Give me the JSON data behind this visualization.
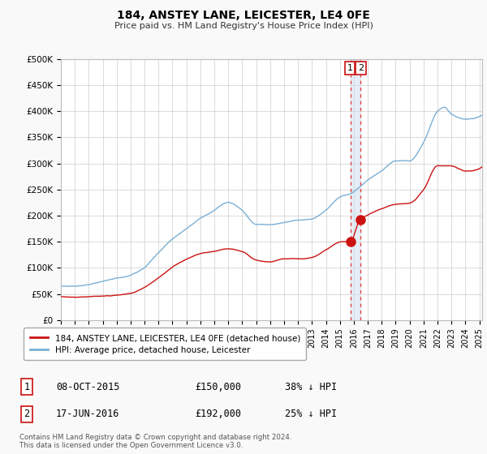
{
  "title": "184, ANSTEY LANE, LEICESTER, LE4 0FE",
  "subtitle": "Price paid vs. HM Land Registry's House Price Index (HPI)",
  "ylabel_ticks": [
    "£0",
    "£50K",
    "£100K",
    "£150K",
    "£200K",
    "£250K",
    "£300K",
    "£350K",
    "£400K",
    "£450K",
    "£500K"
  ],
  "ytick_values": [
    0,
    50000,
    100000,
    150000,
    200000,
    250000,
    300000,
    350000,
    400000,
    450000,
    500000
  ],
  "ylim": [
    0,
    500000
  ],
  "xlim_start": 1995.0,
  "xlim_end": 2025.2,
  "hpi_color": "#7bafd4",
  "price_color": "#cc1111",
  "vline_color": "#dd4444",
  "sale1_x": 2015.77,
  "sale1_y": 150000,
  "sale2_x": 2016.46,
  "sale2_y": 192000,
  "legend_label1": "184, ANSTEY LANE, LEICESTER, LE4 0FE (detached house)",
  "legend_label2": "HPI: Average price, detached house, Leicester",
  "table_row1": [
    "1",
    "08-OCT-2015",
    "£150,000",
    "38% ↓ HPI"
  ],
  "table_row2": [
    "2",
    "17-JUN-2016",
    "£192,000",
    "25% ↓ HPI"
  ],
  "footnote": "Contains HM Land Registry data © Crown copyright and database right 2024.\nThis data is licensed under the Open Government Licence v3.0.",
  "background_color": "#f9f9f9",
  "plot_bg_color": "#ffffff",
  "grid_color": "#cccccc"
}
